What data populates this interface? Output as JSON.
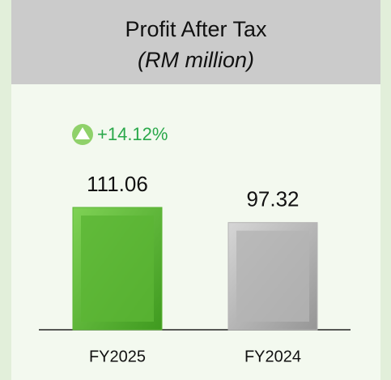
{
  "chart_data": {
    "type": "bar",
    "title": "Profit After Tax",
    "subtitle": "(RM million)",
    "annotation": "+14.12%",
    "categories": [
      "FY2025",
      "FY2024"
    ],
    "values": [
      111.06,
      97.32
    ],
    "colors": [
      "#5bb534",
      "#b4b4b4"
    ]
  }
}
